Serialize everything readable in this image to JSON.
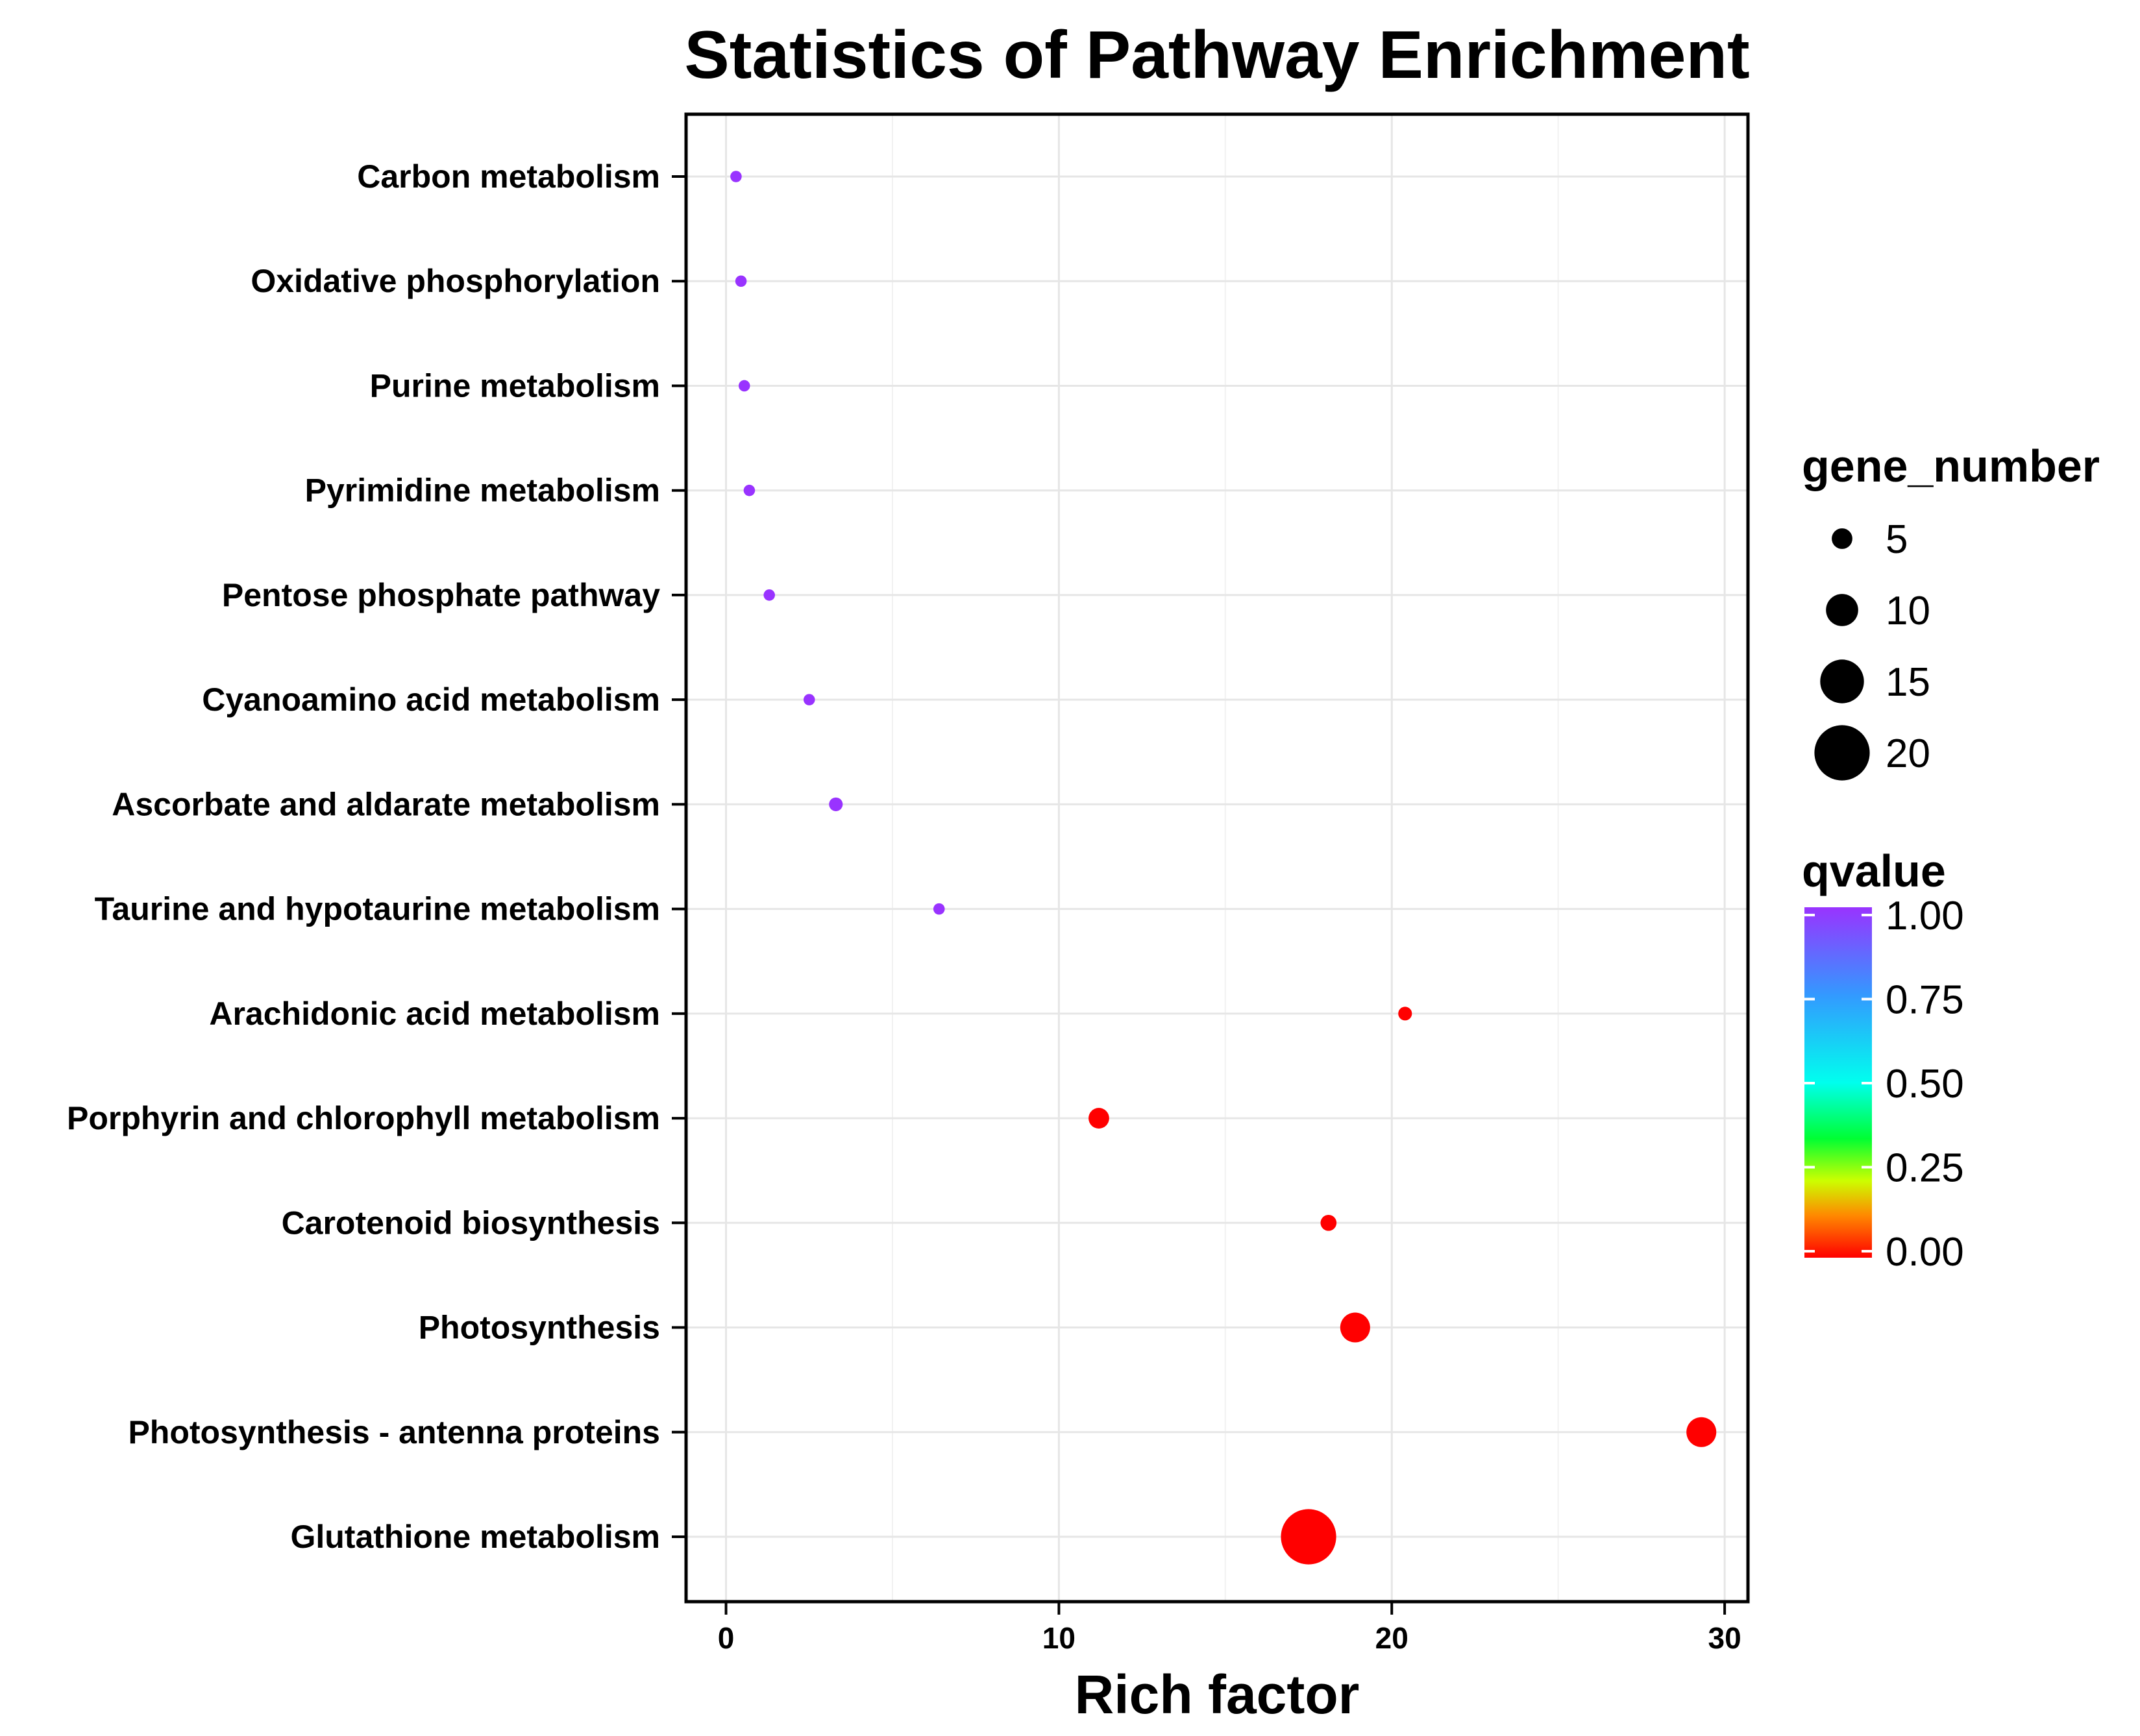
{
  "chart_data": {
    "type": "scatter",
    "title": "Statistics of Pathway Enrichment",
    "xlabel": "Rich factor",
    "ylabel": "",
    "xlim": [
      -1.2,
      30.7
    ],
    "xticks": [
      0,
      10,
      20,
      30
    ],
    "grid": true,
    "points": [
      {
        "pathway": "Carbon metabolism",
        "rich_factor": 0.3,
        "gene_number": 1,
        "qvalue": 1.0
      },
      {
        "pathway": "Oxidative phosphorylation",
        "rich_factor": 0.45,
        "gene_number": 1,
        "qvalue": 1.0
      },
      {
        "pathway": "Purine metabolism",
        "rich_factor": 0.55,
        "gene_number": 1,
        "qvalue": 1.0
      },
      {
        "pathway": "Pyrimidine metabolism",
        "rich_factor": 0.7,
        "gene_number": 1,
        "qvalue": 1.0
      },
      {
        "pathway": "Pentose phosphate pathway",
        "rich_factor": 1.3,
        "gene_number": 1,
        "qvalue": 1.0
      },
      {
        "pathway": "Cyanoamino acid metabolism",
        "rich_factor": 2.5,
        "gene_number": 1,
        "qvalue": 1.0
      },
      {
        "pathway": "Ascorbate and aldarate metabolism",
        "rich_factor": 3.3,
        "gene_number": 2,
        "qvalue": 1.0
      },
      {
        "pathway": "Taurine and hypotaurine metabolism",
        "rich_factor": 6.4,
        "gene_number": 1,
        "qvalue": 1.0
      },
      {
        "pathway": "Arachidonic acid metabolism",
        "rich_factor": 20.4,
        "gene_number": 2,
        "qvalue": 0.0
      },
      {
        "pathway": "Porphyrin and chlorophyll metabolism",
        "rich_factor": 11.2,
        "gene_number": 5,
        "qvalue": 0.0
      },
      {
        "pathway": "Carotenoid biosynthesis",
        "rich_factor": 18.1,
        "gene_number": 3,
        "qvalue": 0.0
      },
      {
        "pathway": "Photosynthesis",
        "rich_factor": 18.9,
        "gene_number": 9,
        "qvalue": 0.0
      },
      {
        "pathway": "Photosynthesis - antenna proteins",
        "rich_factor": 29.3,
        "gene_number": 9,
        "qvalue": 0.0
      },
      {
        "pathway": "Glutathione metabolism",
        "rich_factor": 17.5,
        "gene_number": 20,
        "qvalue": 0.0
      }
    ],
    "legend_size": {
      "title": "gene_number",
      "values": [
        5,
        10,
        15,
        20
      ],
      "labels": [
        "5",
        "10",
        "15",
        "20"
      ]
    },
    "legend_color": {
      "title": "qvalue",
      "values": [
        1.0,
        0.75,
        0.5,
        0.25,
        0.0
      ],
      "labels": [
        "1.00",
        "0.75",
        "0.50",
        "0.25",
        "0.00"
      ],
      "colors": [
        "#9933ff",
        "#3399ff",
        "#00ffee",
        "#00ff33",
        "#ccff00",
        "#ff8800",
        "#ff0000"
      ]
    },
    "legend_position": "right"
  }
}
